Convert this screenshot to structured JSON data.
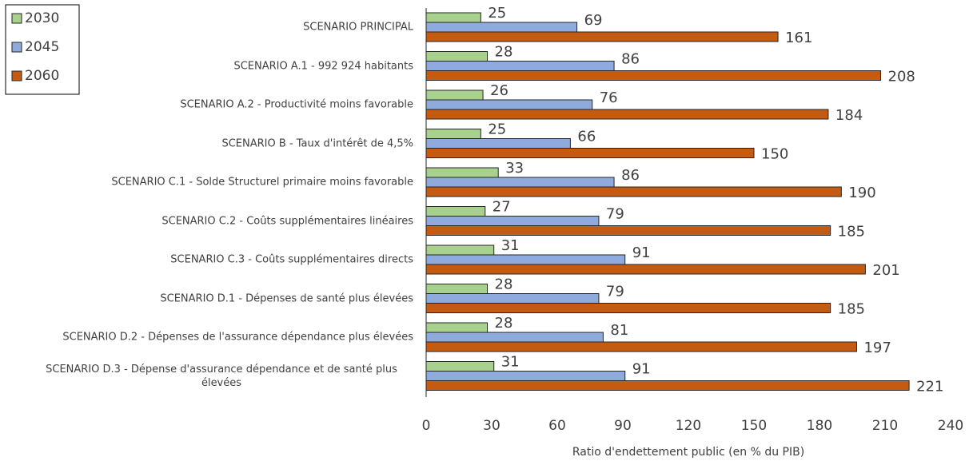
{
  "chart_data": {
    "type": "bar",
    "orientation": "horizontal",
    "xlabel": "Ratio d'endettement public (en % du PIB)",
    "categories": [
      "SCENARIO PRINCIPAL",
      "SCENARIO A.1 - 992 924 habitants",
      "SCENARIO A.2 - Productivité moins favorable",
      "SCENARIO B - Taux d'intérêt de 4,5%",
      "SCENARIO C.1 - Solde Structurel primaire moins favorable",
      "SCENARIO C.2 - Coûts supplémentaires linéaires",
      "SCENARIO C.3 - Coûts supplémentaires directs",
      "SCENARIO D.1 - Dépenses de santé plus élevées",
      "SCENARIO D.2 - Dépenses de l'assurance dépendance plus élevées",
      "SCENARIO D.3 - Dépense d'assurance dépendance et de santé plus élevées"
    ],
    "series": [
      {
        "name": "2030",
        "color": "#a9d18e",
        "values": [
          25,
          28,
          26,
          25,
          33,
          27,
          31,
          28,
          28,
          31
        ]
      },
      {
        "name": "2045",
        "color": "#8faadc",
        "values": [
          69,
          86,
          76,
          66,
          86,
          79,
          91,
          79,
          81,
          91
        ]
      },
      {
        "name": "2060",
        "color": "#c55a11",
        "values": [
          161,
          208,
          184,
          150,
          190,
          185,
          201,
          185,
          197,
          221
        ]
      }
    ],
    "xlim": [
      0,
      240
    ],
    "xticks": [
      0,
      30,
      60,
      90,
      120,
      150,
      180,
      210,
      240
    ],
    "grid": false,
    "legend": "upper left"
  }
}
